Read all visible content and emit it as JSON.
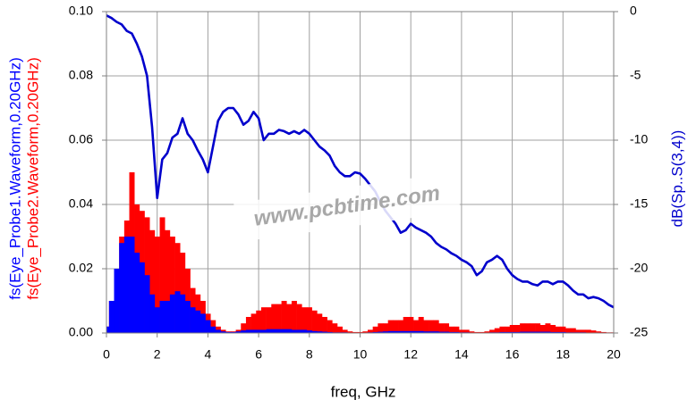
{
  "chart_data": {
    "type": "bar",
    "x_label": "freq, GHz",
    "annotation": "www.pcbtime.com",
    "grid": true,
    "x": [
      0,
      0.2,
      0.4,
      0.6,
      0.8,
      1,
      1.2,
      1.4,
      1.6,
      1.8,
      2,
      2.2,
      2.4,
      2.6,
      2.8,
      3,
      3.2,
      3.4,
      3.6,
      3.8,
      4,
      4.2,
      4.4,
      4.6,
      4.8,
      5,
      5.2,
      5.4,
      5.6,
      5.8,
      6,
      6.2,
      6.4,
      6.6,
      6.8,
      7,
      7.2,
      7.4,
      7.6,
      7.8,
      8,
      8.2,
      8.4,
      8.6,
      8.8,
      9,
      9.2,
      9.4,
      9.6,
      9.8,
      10,
      10.2,
      10.4,
      10.6,
      10.8,
      11,
      11.2,
      11.4,
      11.6,
      11.8,
      12,
      12.2,
      12.4,
      12.6,
      12.8,
      13,
      13.2,
      13.4,
      13.6,
      13.8,
      14,
      14.2,
      14.4,
      14.6,
      14.8,
      15,
      15.2,
      15.4,
      15.6,
      15.8,
      16,
      16.2,
      16.4,
      16.6,
      16.8,
      17,
      17.2,
      17.4,
      17.6,
      17.8,
      18,
      18.2,
      18.4,
      18.6,
      18.8,
      19,
      19.2,
      19.4,
      19.6,
      19.8,
      20
    ],
    "xlim": [
      0,
      20
    ],
    "xticks": [
      0,
      2,
      4,
      6,
      8,
      10,
      12,
      14,
      16,
      18,
      20
    ],
    "ylim": [
      0,
      0.1
    ],
    "yticks": [
      {
        "value": 0,
        "label": "0.00"
      },
      {
        "value": 0.02,
        "label": "0.02"
      },
      {
        "value": 0.04,
        "label": "0.04"
      },
      {
        "value": 0.06,
        "label": "0.06"
      },
      {
        "value": 0.08,
        "label": "0.08"
      },
      {
        "value": 0.1,
        "label": "0.10"
      }
    ],
    "y2lim": [
      -25,
      0
    ],
    "y2ticks": [
      -25,
      -20,
      -15,
      -10,
      -5,
      0
    ],
    "series": [
      {
        "name": "fs(Eye_Probe1.Waveform,0.20GHz)",
        "color": "#0000ff",
        "type": "bar",
        "values": [
          0.002,
          0.01,
          0.02,
          0.028,
          0.03,
          0.03,
          0.025,
          0.022,
          0.018,
          0.012,
          0.008,
          0.01,
          0.01,
          0.012,
          0.013,
          0.012,
          0.01,
          0.008,
          0.007,
          0.006,
          0.004,
          0.002,
          0.001,
          0.0005,
          0.0003,
          0.0003,
          0.0005,
          0.0008,
          0.001,
          0.001,
          0.001,
          0.001,
          0.0012,
          0.0012,
          0.0012,
          0.0012,
          0.0012,
          0.001,
          0.001,
          0.001,
          0.0008,
          0.0006,
          0.0005,
          0.0004,
          0.0003,
          0.0002,
          0.0002,
          0.0002,
          0.0001,
          0.0001,
          0.0001,
          0.0001,
          0.0002,
          0.0003,
          0.0004,
          0.0005,
          0.0006,
          0.0006,
          0.0006,
          0.0006,
          0.0006,
          0.0006,
          0.0006,
          0.0005,
          0.0005,
          0.0005,
          0.0004,
          0.0004,
          0.0003,
          0.0003,
          0.0002,
          0.0002,
          0.0001,
          0.0001,
          0.0001,
          0.0001,
          0.0002,
          0.0002,
          0.0003,
          0.0003,
          0.0003,
          0.0003,
          0.0004,
          0.0004,
          0.0004,
          0.0004,
          0.0004,
          0.0004,
          0.0003,
          0.0003,
          0.0003,
          0.0002,
          0.0002,
          0.0002,
          0.0002,
          0.0001,
          0.0001,
          0.0001,
          0.0001,
          0.0001,
          0.0001
        ]
      },
      {
        "name": "fs(Eye_Probe2.Waveform,0.20GHz)",
        "color": "#ff0000",
        "type": "bar",
        "values": [
          0.002,
          0.01,
          0.02,
          0.03,
          0.035,
          0.05,
          0.04,
          0.038,
          0.036,
          0.032,
          0.03,
          0.036,
          0.032,
          0.03,
          0.028,
          0.025,
          0.02,
          0.014,
          0.012,
          0.01,
          0.006,
          0.004,
          0.002,
          0.001,
          0.0005,
          0.0005,
          0.001,
          0.003,
          0.005,
          0.006,
          0.007,
          0.008,
          0.008,
          0.009,
          0.009,
          0.01,
          0.009,
          0.01,
          0.009,
          0.008,
          0.008,
          0.007,
          0.006,
          0.005,
          0.004,
          0.003,
          0.002,
          0.001,
          0.0005,
          0.0003,
          0.0003,
          0.0005,
          0.001,
          0.002,
          0.003,
          0.003,
          0.004,
          0.004,
          0.004,
          0.005,
          0.005,
          0.004,
          0.005,
          0.004,
          0.004,
          0.004,
          0.003,
          0.003,
          0.002,
          0.002,
          0.001,
          0.001,
          0.0005,
          0.0003,
          0.0003,
          0.0005,
          0.001,
          0.0015,
          0.002,
          0.002,
          0.0025,
          0.0025,
          0.003,
          0.003,
          0.003,
          0.003,
          0.0025,
          0.003,
          0.0025,
          0.002,
          0.002,
          0.0015,
          0.0015,
          0.001,
          0.001,
          0.001,
          0.0008,
          0.0005,
          0.0003,
          0.0002,
          0.0002
        ]
      },
      {
        "name": "dB(Sp..S(3,4))",
        "color": "#0000cc",
        "type": "line",
        "axis": "y2",
        "values": [
          -0.3,
          -0.5,
          -0.8,
          -1,
          -1.5,
          -1.7,
          -2.5,
          -3.5,
          -5,
          -9,
          -14.5,
          -11.5,
          -11,
          -9.8,
          -9.5,
          -8.3,
          -9.5,
          -10,
          -10.8,
          -11.5,
          -12.5,
          -10.5,
          -8.5,
          -7.8,
          -7.5,
          -7.5,
          -8,
          -8.8,
          -8.5,
          -7.8,
          -8.3,
          -10,
          -9.5,
          -9.5,
          -9.2,
          -9.3,
          -9.5,
          -9.3,
          -9.5,
          -9.2,
          -9.5,
          -10,
          -10.5,
          -10.8,
          -11.2,
          -12,
          -12.5,
          -12.8,
          -12.8,
          -12.5,
          -12.6,
          -13,
          -13.5,
          -14,
          -14.8,
          -15.5,
          -16,
          -16.5,
          -17.2,
          -17,
          -16.5,
          -16.8,
          -17,
          -17.2,
          -17.5,
          -18,
          -18.3,
          -18.5,
          -18.8,
          -19,
          -19.3,
          -19.5,
          -19.8,
          -20.5,
          -20.2,
          -19.5,
          -19.3,
          -19,
          -19.3,
          -20,
          -20.5,
          -20.8,
          -21,
          -21,
          -21.2,
          -21.3,
          -21,
          -21,
          -21.2,
          -21,
          -21,
          -21.3,
          -21.7,
          -22,
          -22,
          -22.3,
          -22.2,
          -22.3,
          -22.5,
          -22.8,
          -23
        ]
      }
    ]
  }
}
